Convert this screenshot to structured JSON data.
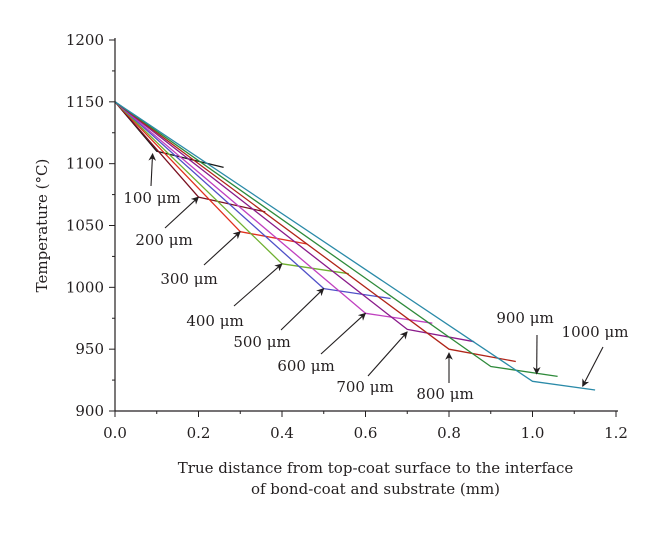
{
  "chart_data": {
    "type": "line",
    "title": "",
    "xlabel": [
      "True distance from top-coat surface to the interface",
      "of bond-coat and substrate (mm)"
    ],
    "ylabel": "Temperature (°C)",
    "xlim": [
      0.0,
      1.2
    ],
    "ylim": [
      900,
      1200
    ],
    "x_ticks": [
      "0.0",
      "0.2",
      "0.4",
      "0.6",
      "0.8",
      "1.0",
      "1.2"
    ],
    "y_ticks": [
      "900",
      "950",
      "1000",
      "1050",
      "1100",
      "1150",
      "1200"
    ],
    "grid": false,
    "legend": "none",
    "series": [
      {
        "name": "100 μm",
        "color": "#1a1a1a",
        "points": [
          [
            0.0,
            1150
          ],
          [
            0.1,
            1110
          ],
          [
            0.26,
            1097
          ]
        ]
      },
      {
        "name": "200 μm",
        "color": "#7a1020",
        "points": [
          [
            0.0,
            1150
          ],
          [
            0.2,
            1073
          ],
          [
            0.36,
            1061
          ]
        ]
      },
      {
        "name": "300 μm",
        "color": "#e0301e",
        "points": [
          [
            0.0,
            1150
          ],
          [
            0.3,
            1045
          ],
          [
            0.46,
            1035
          ]
        ]
      },
      {
        "name": "400 μm",
        "color": "#6fb030",
        "points": [
          [
            0.0,
            1150
          ],
          [
            0.4,
            1019
          ],
          [
            0.56,
            1011
          ]
        ]
      },
      {
        "name": "500 μm",
        "color": "#5050c8",
        "points": [
          [
            0.0,
            1150
          ],
          [
            0.5,
            999
          ],
          [
            0.66,
            991
          ]
        ]
      },
      {
        "name": "600 μm",
        "color": "#c040c0",
        "points": [
          [
            0.0,
            1150
          ],
          [
            0.6,
            979
          ],
          [
            0.76,
            971
          ]
        ]
      },
      {
        "name": "700 μm",
        "color": "#8a1a8a",
        "points": [
          [
            0.0,
            1150
          ],
          [
            0.7,
            966
          ],
          [
            0.86,
            956
          ]
        ]
      },
      {
        "name": "800 μm",
        "color": "#b02418",
        "points": [
          [
            0.0,
            1150
          ],
          [
            0.8,
            950
          ],
          [
            0.96,
            940
          ]
        ]
      },
      {
        "name": "900 μm",
        "color": "#2e8a3a",
        "points": [
          [
            0.0,
            1150
          ],
          [
            0.9,
            936
          ],
          [
            1.06,
            928
          ]
        ]
      },
      {
        "name": "1000 μm",
        "color": "#2a8aa8",
        "points": [
          [
            0.0,
            1150
          ],
          [
            1.0,
            924
          ],
          [
            1.15,
            917
          ]
        ]
      }
    ],
    "annotations": [
      {
        "text": "100 μm",
        "arrow_to": [
          0.09,
          1108
        ]
      },
      {
        "text": "200 μm",
        "arrow_to": [
          0.2,
          1073
        ]
      },
      {
        "text": "300 μm",
        "arrow_to": [
          0.3,
          1045
        ]
      },
      {
        "text": "400 μm",
        "arrow_to": [
          0.4,
          1019
        ]
      },
      {
        "text": "500 μm",
        "arrow_to": [
          0.5,
          999
        ]
      },
      {
        "text": "600 μm",
        "arrow_to": [
          0.6,
          979
        ]
      },
      {
        "text": "700 μm",
        "arrow_to": [
          0.7,
          964
        ]
      },
      {
        "text": "800 μm",
        "arrow_to": [
          0.8,
          947
        ]
      },
      {
        "text": "900 μm",
        "arrow_to": [
          1.01,
          930
        ]
      },
      {
        "text": "1000 μm",
        "arrow_to": [
          1.12,
          920
        ]
      }
    ]
  }
}
